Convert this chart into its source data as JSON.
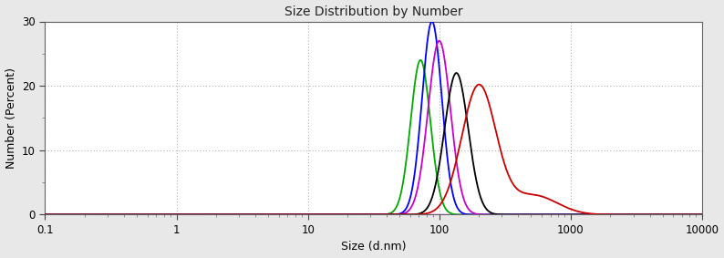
{
  "title": "Size Distribution by Number",
  "xlabel": "Size (d.nm)",
  "ylabel": "Number (Percent)",
  "background_color": "#e8e8e8",
  "plot_bg_color": "#ffffff",
  "ylim": [
    0,
    30
  ],
  "yticks": [
    0,
    10,
    20,
    30
  ],
  "xtick_labels": [
    "0.1",
    "1",
    "10",
    "100",
    "1000",
    "10000"
  ],
  "curves": [
    {
      "color": "#00aa00",
      "peaks": [
        72
      ],
      "sigmas": [
        0.075
      ],
      "amplitudes": [
        24.0
      ]
    },
    {
      "color": "#0000ff",
      "peaks": [
        88
      ],
      "sigmas": [
        0.075
      ],
      "amplitudes": [
        30.0
      ]
    },
    {
      "color": "#cc00cc",
      "peaks": [
        100
      ],
      "sigmas": [
        0.085
      ],
      "amplitudes": [
        27.0
      ]
    },
    {
      "color": "#000000",
      "peaks": [
        135
      ],
      "sigmas": [
        0.09
      ],
      "amplitudes": [
        22.0
      ]
    },
    {
      "color": "#cc0000",
      "peaks": [
        200,
        520
      ],
      "sigmas": [
        0.13,
        0.18
      ],
      "amplitudes": [
        20.0,
        3.0
      ]
    }
  ],
  "baseline_color": "#ff00ff",
  "baseline_linewidth": 1.0,
  "grid_color": "#555555",
  "grid_dotsize": 1.0,
  "title_fontsize": 10,
  "label_fontsize": 9,
  "tick_fontsize": 8.5,
  "curve_linewidth": 1.3
}
